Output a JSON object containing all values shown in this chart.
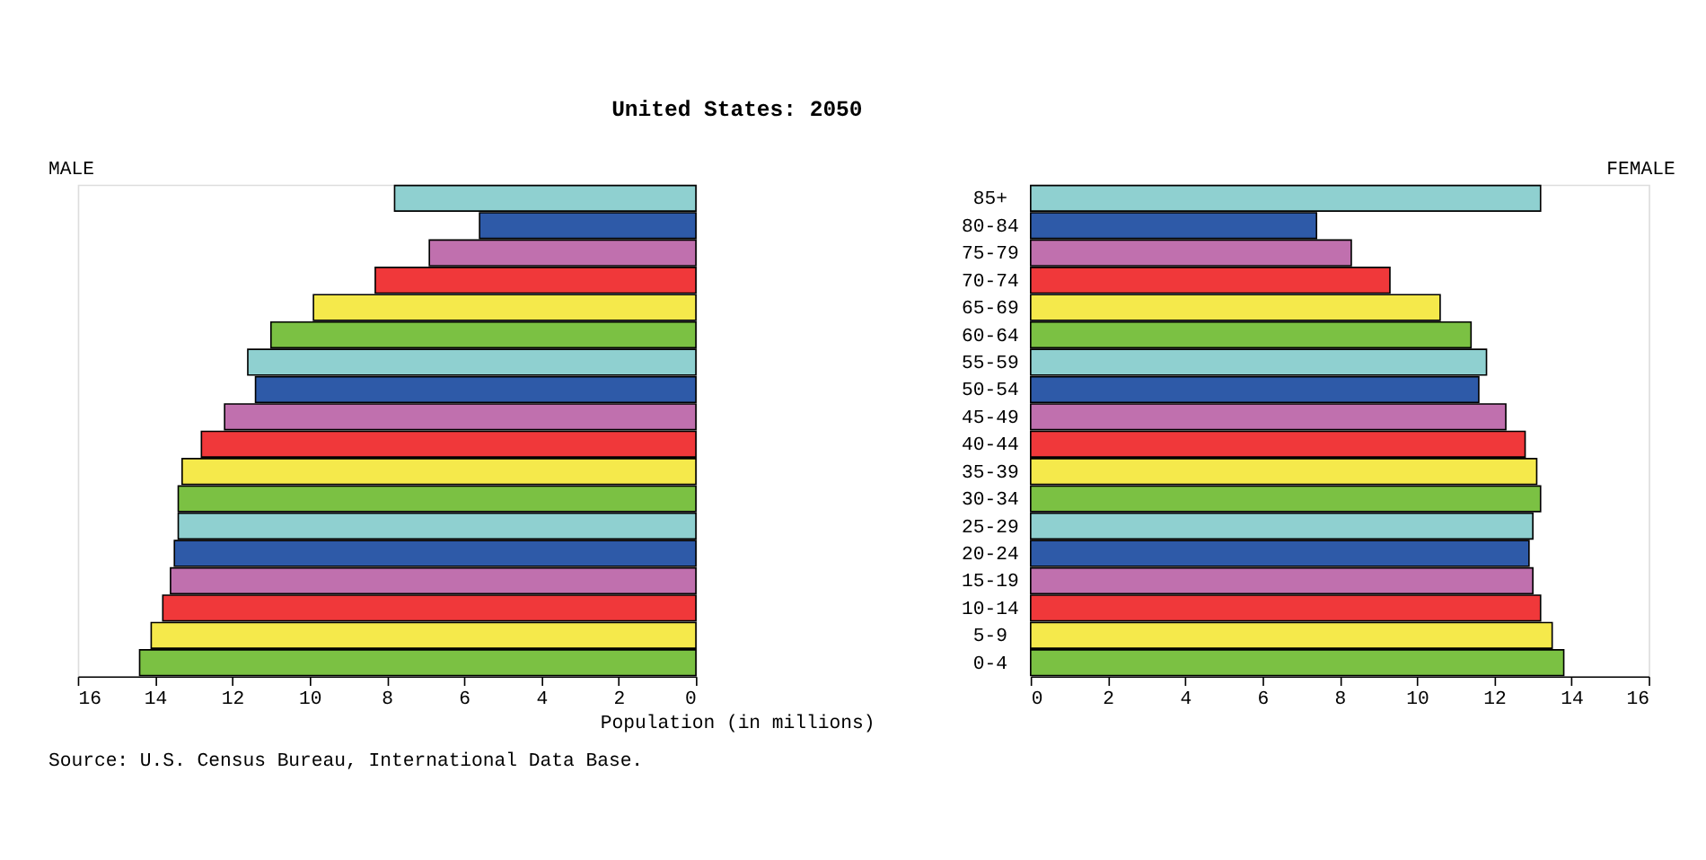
{
  "chart_data": [
    {
      "type": "other",
      "title": "United States: 2050"
    },
    {
      "type": "bar",
      "orientation": "horizontal",
      "ylabel": "MALE",
      "xlabel": "Population (in millions)",
      "annotations": [
        "Source: U.S. Census Bureau, International Data Base."
      ],
      "categories": [
        null,
        null,
        null,
        null,
        null,
        null,
        null,
        null,
        null,
        null,
        null,
        null,
        null,
        null,
        null,
        null,
        null,
        null
      ],
      "values": [
        7.8,
        5.6,
        6.9,
        8.3,
        9.9,
        11.0,
        11.6,
        11.4,
        12.2,
        12.8,
        13.3,
        13.4,
        13.4,
        13.5,
        13.6,
        13.8,
        14.1,
        14.4
      ],
      "colors": [
        "#8fd0d0",
        "#2e5aa8",
        "#c070ae",
        "#f0383a",
        "#f5e94b",
        "#7bc143",
        "#8fd0d0",
        "#2e5aa8",
        "#c070ae",
        "#f0383a",
        "#f5e94b",
        "#7bc143",
        "#8fd0d0",
        "#2e5aa8",
        "#c070ae",
        "#f0383a",
        "#f5e94b",
        "#7bc143"
      ],
      "xlim": [
        16,
        0
      ],
      "xticks": [
        16,
        14,
        12,
        10,
        8,
        6,
        4,
        2,
        0
      ],
      "tick_labels": "x"
    },
    {
      "type": "bar",
      "orientation": "horizontal",
      "ylabel": "FEMALE",
      "categories": [
        "85+",
        "80-84",
        "75-79",
        "70-74",
        "65-69",
        "60-64",
        "55-59",
        "50-54",
        "45-49",
        "40-44",
        "35-39",
        "30-34",
        "25-29",
        "20-24",
        "15-19",
        "10-14",
        "5-9",
        "0-4"
      ],
      "values": [
        13.2,
        7.4,
        8.3,
        9.3,
        10.6,
        11.4,
        11.8,
        11.6,
        12.3,
        12.8,
        13.1,
        13.2,
        13.0,
        12.9,
        13.0,
        13.2,
        13.5,
        13.8
      ],
      "colors": [
        "#8fd0d0",
        "#2e5aa8",
        "#c070ae",
        "#f0383a",
        "#f5e94b",
        "#7bc143",
        "#8fd0d0",
        "#2e5aa8",
        "#c070ae",
        "#f0383a",
        "#f5e94b",
        "#7bc143",
        "#8fd0d0",
        "#2e5aa8",
        "#c070ae",
        "#f0383a",
        "#f5e94b",
        "#7bc143"
      ],
      "xlim": [
        0,
        16
      ],
      "xticks": [
        0,
        2,
        4,
        6,
        8,
        10,
        12,
        14,
        16
      ]
    }
  ]
}
